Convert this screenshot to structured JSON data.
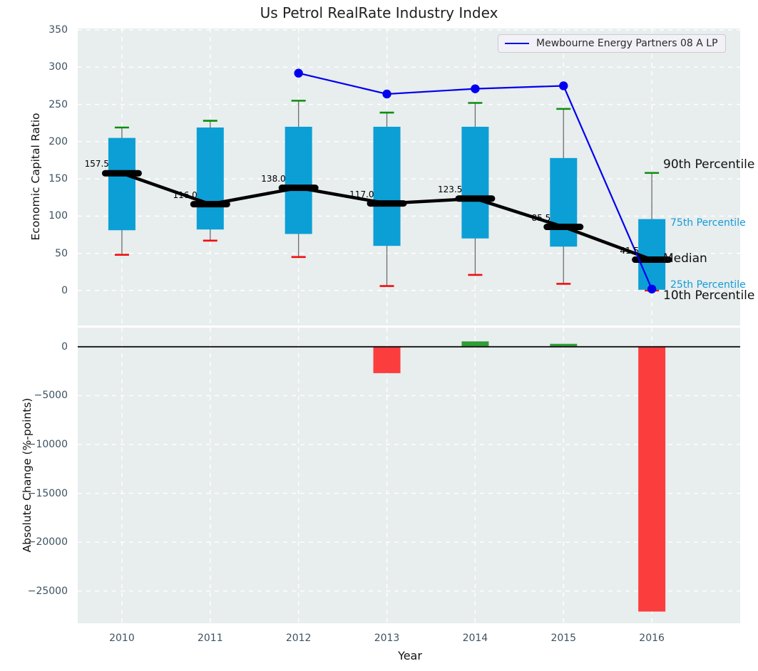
{
  "title": "Us Petrol RealRate Industry Index",
  "colors": {
    "panel_bg": "#e8edee",
    "grid": "#ffffff",
    "box_fill": "#0b9fd6",
    "whisker": "#6e6e6e",
    "cap_high": "#0a8f0a",
    "cap_low": "#f10e0e",
    "median": "#000000",
    "company_line": "#0000ee",
    "bar_negative": "#fb3d3d",
    "bar_positive": "#2f9e37",
    "zero_line": "#111111",
    "tick_label": "#3d5261",
    "annotation_cyan": "#159cd6"
  },
  "chart_data": [
    {
      "id": "economic-capital-ratio",
      "type": "boxplot+line",
      "title": "Us Petrol RealRate Industry Index",
      "ylabel": "Economic Capital Ratio",
      "xlabel": "",
      "ylim": [
        -47,
        352
      ],
      "yticks": [
        0,
        50,
        100,
        150,
        200,
        250,
        300,
        350
      ],
      "xlim": [
        2009.5,
        2017.0
      ],
      "grid": true,
      "categories": [
        2010,
        2011,
        2012,
        2013,
        2014,
        2015,
        2016
      ],
      "boxes": {
        "p90": [
          219,
          228,
          255,
          239,
          252,
          244,
          158
        ],
        "p75": [
          205,
          219,
          220,
          220,
          220,
          178,
          96
        ],
        "median": [
          157.5,
          116.0,
          138.0,
          117.0,
          123.5,
          85.5,
          41.5
        ],
        "p25": [
          81,
          82,
          76,
          60,
          70,
          59,
          1
        ],
        "p10": [
          48,
          67,
          45,
          6,
          21,
          9,
          0
        ]
      },
      "median_labels": [
        "157.5",
        "116.0",
        "138.0",
        "117.0",
        "123.5",
        "85.5",
        "41.5"
      ],
      "series_label": "Mewbourne Energy Partners 08 A LP",
      "company_series": {
        "x": [
          2012,
          2013,
          2014,
          2015,
          2016
        ],
        "y": [
          292,
          264,
          271,
          275,
          2
        ]
      },
      "legend_position": "upper right",
      "annotations": [
        {
          "text": "90th Percentile",
          "y": 169,
          "style": "dark"
        },
        {
          "text": "75th Percentile",
          "y": 91,
          "style": "cyan"
        },
        {
          "text": "Median",
          "y": 43,
          "style": "dark"
        },
        {
          "text": "25th Percentile",
          "y": 8,
          "style": "cyan"
        },
        {
          "text": "10th Percentile",
          "y": -7,
          "style": "dark"
        }
      ]
    },
    {
      "id": "absolute-change",
      "type": "bar",
      "ylabel": "Absolute Change (%-points)",
      "xlabel": "Year",
      "ylim": [
        -28300,
        1955
      ],
      "yticks": [
        0,
        -5000,
        -10000,
        -15000,
        -20000,
        -25000
      ],
      "xlim": [
        2009.5,
        2017.0
      ],
      "grid": true,
      "xticks": [
        "2010",
        "2011",
        "2012",
        "2013",
        "2014",
        "2015",
        "2016"
      ],
      "x": [
        2013,
        2014,
        2015,
        2016
      ],
      "values": [
        -2700,
        550,
        300,
        -27100
      ],
      "zero_line": true
    }
  ]
}
